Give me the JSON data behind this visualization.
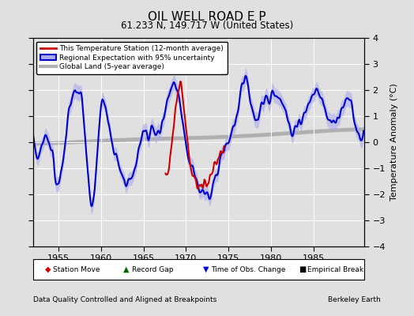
{
  "title": "OIL WELL ROAD E P",
  "subtitle": "61.233 N, 149.717 W (United States)",
  "xlabel_bottom": "Data Quality Controlled and Aligned at Breakpoints",
  "xlabel_right": "Berkeley Earth",
  "ylabel_right": "Temperature Anomaly (°C)",
  "xlim": [
    1952,
    1991
  ],
  "ylim": [
    -4,
    4
  ],
  "yticks": [
    -4,
    -3,
    -2,
    -1,
    0,
    1,
    2,
    3,
    4
  ],
  "xticks": [
    1955,
    1960,
    1965,
    1970,
    1975,
    1980,
    1985
  ],
  "bg_color": "#e0e0e0",
  "plot_bg_color": "#e0e0e0",
  "station_color": "#cc0000",
  "regional_color": "#0000cc",
  "regional_fill_color": "#aaaaee",
  "global_color": "#b0b0b0",
  "global_lw": 3.5,
  "station_lw": 1.5,
  "regional_lw": 1.5,
  "station_start": 1967.5,
  "station_end": 1974.5
}
